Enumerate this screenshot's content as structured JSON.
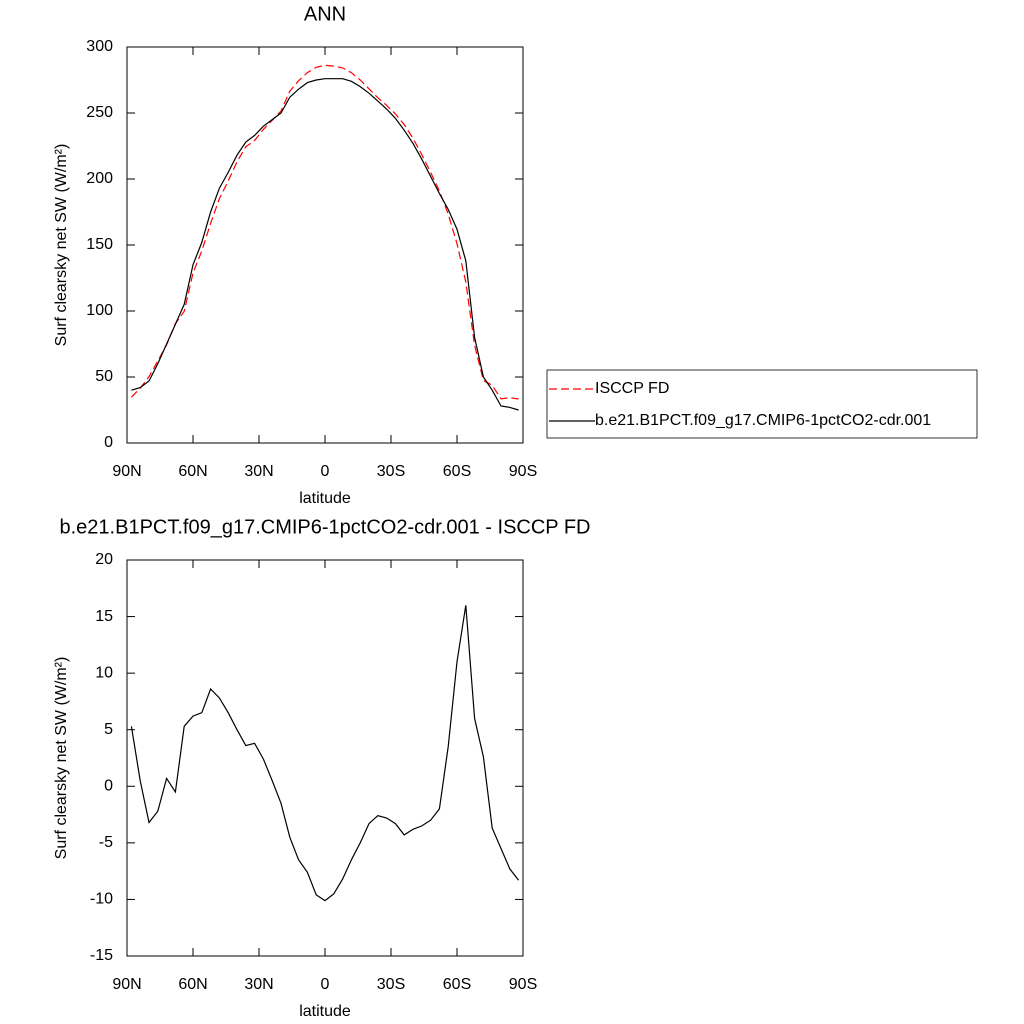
{
  "chart_data": [
    {
      "type": "line",
      "title": "ANN",
      "xlabel": "latitude",
      "ylabel": "Surf clearsky net SW (W/m²)",
      "x": [
        88,
        84,
        80,
        76,
        72,
        68,
        64,
        60,
        56,
        52,
        48,
        44,
        40,
        36,
        32,
        28,
        24,
        20,
        16,
        12,
        8,
        4,
        0,
        -4,
        -8,
        -12,
        -16,
        -20,
        -24,
        -28,
        -32,
        -36,
        -40,
        -44,
        -48,
        -52,
        -56,
        -60,
        -64,
        -68,
        -72,
        -76,
        -80,
        -84,
        -88
      ],
      "series": [
        {
          "name": "ISCCP FD",
          "color": "#ff0000",
          "line_style": "dashed",
          "values": [
            34.7,
            41.5,
            50.2,
            62.2,
            74.3,
            90.5,
            99.7,
            128.8,
            145.5,
            166.4,
            185.2,
            198.5,
            213,
            224.4,
            229.2,
            237.6,
            244.5,
            251.5,
            266.5,
            274.5,
            280.6,
            284.6,
            286.1,
            285.5,
            284.2,
            280.5,
            275,
            268.3,
            261.6,
            255.8,
            249.3,
            241.3,
            230.8,
            218.5,
            205,
            191,
            173.5,
            151,
            122,
            74,
            47.4,
            43.7,
            33.5,
            34.3,
            33.3
          ]
        },
        {
          "name": "b.e21.B1PCT.f09_g17.CMIP6-1pctCO2-cdr.001",
          "color": "#000000",
          "line_style": "solid",
          "values": [
            40,
            42,
            47,
            60,
            75,
            90,
            105,
            135,
            152,
            175,
            193,
            205,
            218,
            228,
            233,
            240,
            245,
            250,
            262,
            268,
            273,
            275,
            276,
            276,
            276,
            274,
            270,
            265,
            259,
            253,
            246,
            237,
            227,
            215,
            202,
            189,
            177,
            162,
            138,
            80,
            50,
            40,
            28,
            27,
            25
          ]
        }
      ],
      "xlim": [
        90,
        -90
      ],
      "xticks": [
        {
          "value": 90,
          "label": "90N"
        },
        {
          "value": 60,
          "label": "60N"
        },
        {
          "value": 30,
          "label": "30N"
        },
        0,
        {
          "value": -30,
          "label": "30S"
        },
        {
          "value": -60,
          "label": "60S"
        },
        {
          "value": -90,
          "label": "90S"
        }
      ],
      "ylim": [
        0,
        300
      ],
      "yticks": [
        0,
        50,
        100,
        150,
        200,
        250,
        300
      ],
      "legend": "right"
    },
    {
      "type": "line",
      "title": "b.e21.B1PCT.f09_g17.CMIP6-1pctCO2-cdr.001 - ISCCP FD",
      "xlabel": "latitude",
      "ylabel": "Surf clearsky net SW (W/m²)",
      "x": [
        88,
        84,
        80,
        76,
        72,
        68,
        64,
        60,
        56,
        52,
        48,
        44,
        40,
        36,
        32,
        28,
        24,
        20,
        16,
        12,
        8,
        4,
        0,
        -4,
        -8,
        -12,
        -16,
        -20,
        -24,
        -28,
        -32,
        -36,
        -40,
        -44,
        -48,
        -52,
        -56,
        -60,
        -64,
        -68,
        -72,
        -76,
        -80,
        -84,
        -88
      ],
      "color": "#000000",
      "values": [
        5.3,
        0.5,
        -3.2,
        -2.2,
        0.7,
        -0.5,
        5.3,
        6.2,
        6.5,
        8.6,
        7.8,
        6.5,
        5.0,
        3.6,
        3.8,
        2.4,
        0.5,
        -1.5,
        -4.5,
        -6.5,
        -7.6,
        -9.6,
        -10.1,
        -9.5,
        -8.2,
        -6.5,
        -5,
        -3.3,
        -2.6,
        -2.8,
        -3.3,
        -4.3,
        -3.8,
        -3.5,
        -3,
        -2,
        3.5,
        11,
        16,
        6,
        2.6,
        -3.7,
        -5.5,
        -7.3,
        -8.3
      ],
      "xlim": [
        90,
        -90
      ],
      "xticks": [
        {
          "value": 90,
          "label": "90N"
        },
        {
          "value": 60,
          "label": "60N"
        },
        {
          "value": 30,
          "label": "30N"
        },
        0,
        {
          "value": -30,
          "label": "30S"
        },
        {
          "value": -60,
          "label": "60S"
        },
        {
          "value": -90,
          "label": "90S"
        }
      ],
      "ylim": [
        -15,
        20
      ],
      "yticks": [
        -15,
        -10,
        -5,
        0,
        5,
        10,
        15,
        20
      ]
    }
  ]
}
